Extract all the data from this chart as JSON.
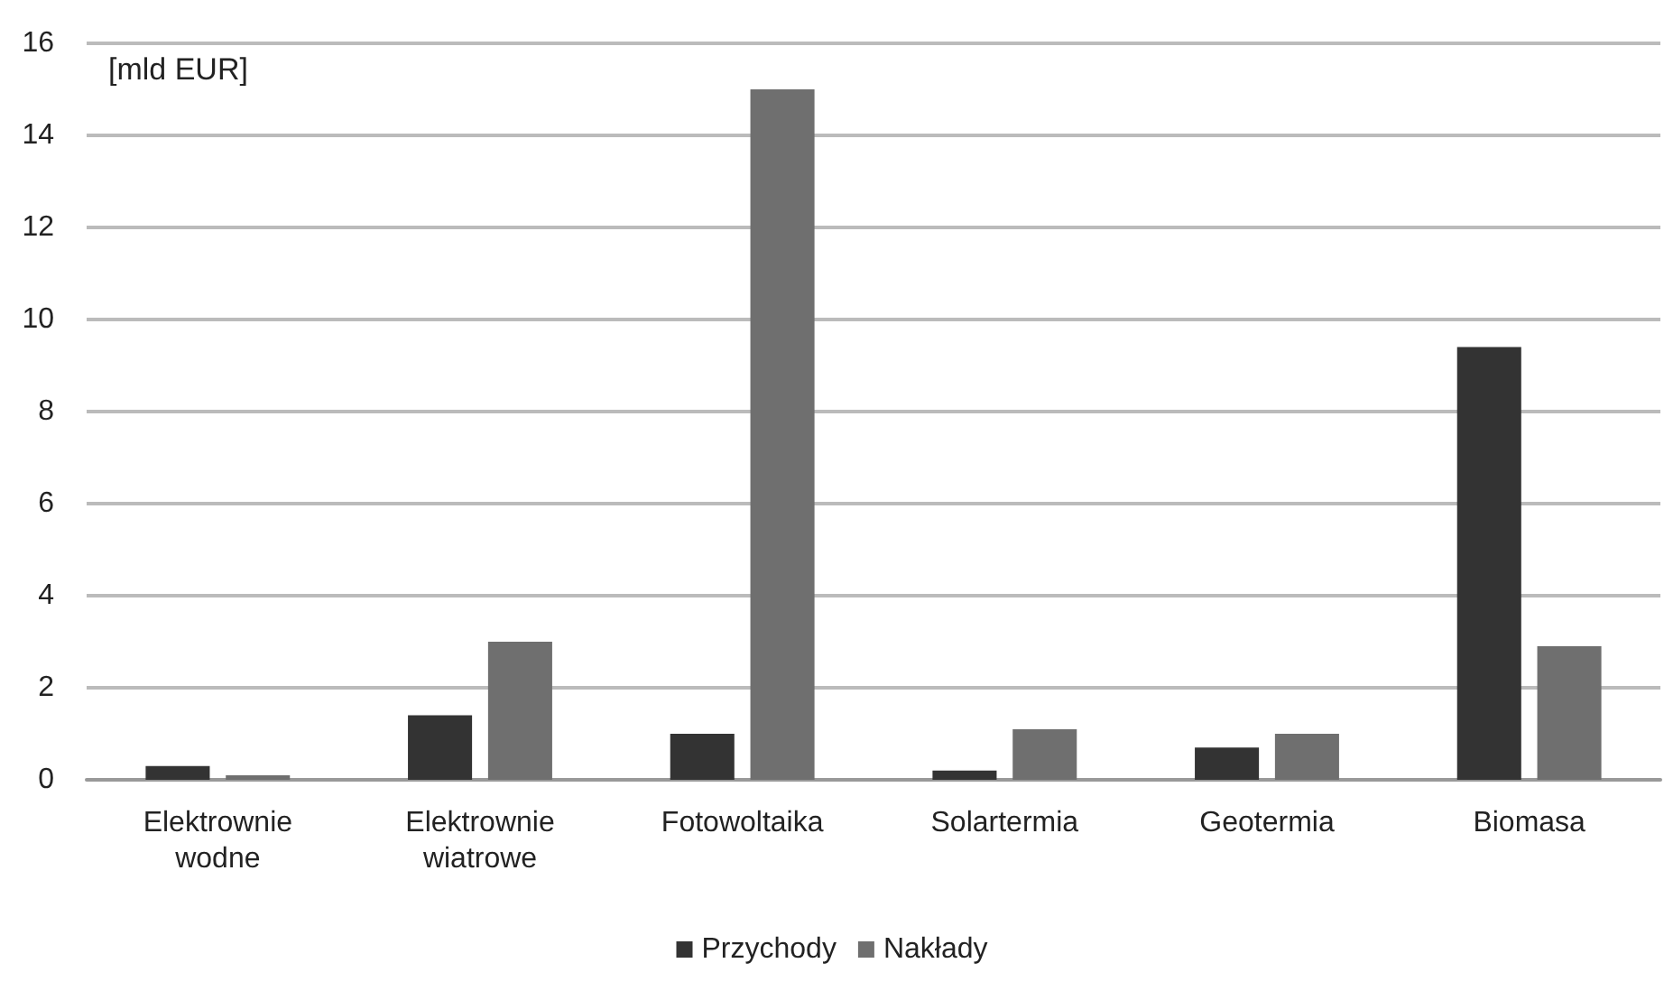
{
  "chart_data": {
    "type": "bar",
    "ylabel": "[mld EUR]",
    "categories": [
      "Elektrownie\nwodne",
      "Elektrownie\nwiatrowe",
      "Fotowoltaika",
      "Solartermia",
      "Geotermia",
      "Biomasa"
    ],
    "series": [
      {
        "name": "Przychody",
        "color": "#333333",
        "values": [
          0.3,
          1.4,
          1.0,
          0.2,
          0.7,
          9.4
        ]
      },
      {
        "name": "Nakłady",
        "color": "#6f6f6f",
        "values": [
          0.1,
          3.0,
          15.0,
          1.1,
          1.0,
          2.9
        ]
      }
    ],
    "ylim": [
      0,
      16
    ],
    "yticks": [
      0,
      2,
      4,
      6,
      8,
      10,
      12,
      14,
      16
    ],
    "grid": "y",
    "legend": "bottom"
  }
}
